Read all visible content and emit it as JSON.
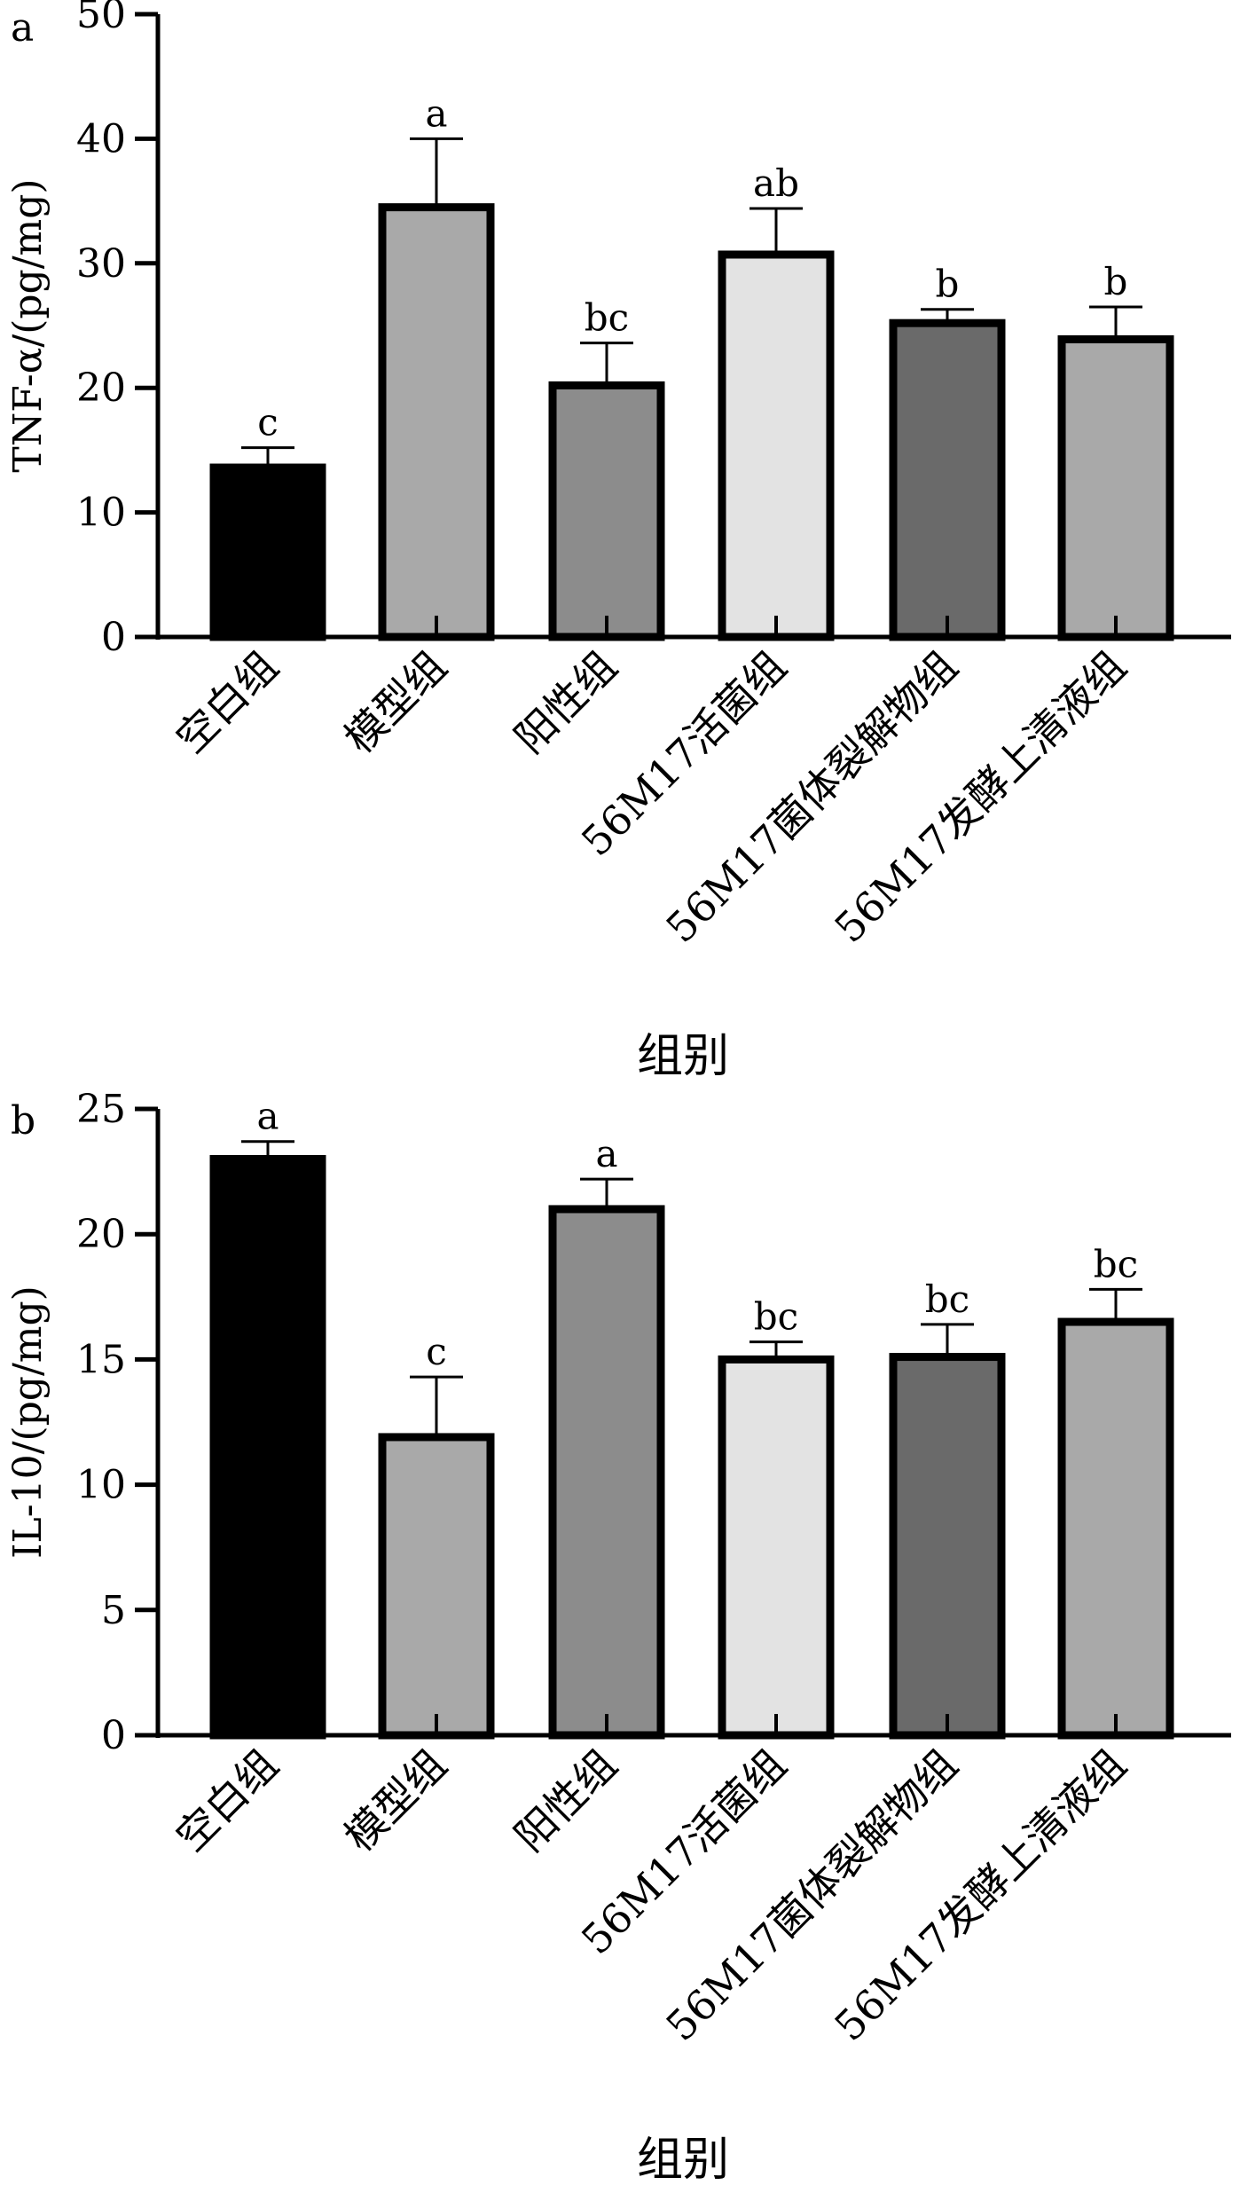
{
  "chart_data": [
    {
      "type": "bar",
      "panel_label": "a",
      "ylabel": "TNF-α/(pg/mg)",
      "xlabel": "组别",
      "ylim": [
        0,
        50
      ],
      "yticks": [
        0,
        10,
        20,
        30,
        40,
        50
      ],
      "categories": [
        "空白组",
        "模型组",
        "阳性组",
        "56M17活菌组",
        "56M17菌体裂解物组",
        "56M17发酵上清液组"
      ],
      "values": [
        13.6,
        34.5,
        20.2,
        30.7,
        25.2,
        23.9
      ],
      "errors": [
        1.6,
        5.5,
        3.4,
        3.7,
        1.1,
        2.6
      ],
      "significance": [
        "c",
        "a",
        "bc",
        "ab",
        "b",
        "b"
      ],
      "colors": [
        "#000000",
        "#a9a9a9",
        "#8c8c8c",
        "#e3e3e3",
        "#6a6a6a",
        "#a9a9a9"
      ]
    },
    {
      "type": "bar",
      "panel_label": "b",
      "ylabel": "IL-10/(pg/mg)",
      "xlabel": "组别",
      "ylim": [
        0,
        25
      ],
      "yticks": [
        0,
        5,
        10,
        15,
        20,
        25
      ],
      "categories": [
        "空白组",
        "模型组",
        "阳性组",
        "56M17活菌组",
        "56M17菌体裂解物组",
        "56M17发酵上清液组"
      ],
      "values": [
        23.0,
        11.9,
        21.0,
        15.0,
        15.1,
        16.5
      ],
      "errors": [
        0.7,
        2.4,
        1.2,
        0.7,
        1.3,
        1.3
      ],
      "significance": [
        "a",
        "c",
        "a",
        "bc",
        "bc",
        "bc"
      ],
      "colors": [
        "#000000",
        "#a9a9a9",
        "#8c8c8c",
        "#e3e3e3",
        "#6a6a6a",
        "#a9a9a9"
      ]
    }
  ]
}
